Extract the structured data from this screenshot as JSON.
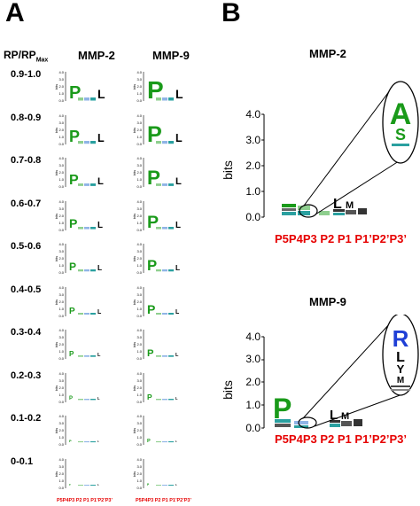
{
  "panels": {
    "a_label": "A",
    "b_label": "B"
  },
  "panel_a": {
    "row_header_main": "RP/RP",
    "row_header_sub": "Max",
    "columns": [
      "MMP-2",
      "MMP-9"
    ],
    "rows": [
      "0.9-1.0",
      "0.8-0.9",
      "0.7-0.8",
      "0.6-0.7",
      "0.5-0.6",
      "0.4-0.5",
      "0.3-0.4",
      "0.2-0.3",
      "0.1-0.2",
      "0-0.1"
    ],
    "y_axis_label": "bits",
    "y_ticks": [
      "4.0",
      "3.0",
      "2.0",
      "1.0",
      "0.0"
    ],
    "positions_label": "P5P4P3 P2 P1 P1’P2’P3’"
  },
  "panel_b": {
    "logos": [
      {
        "title": "MMP-2",
        "zoom_letters": [
          "A",
          "S"
        ]
      },
      {
        "title": "MMP-9",
        "zoom_letters": [
          "R",
          "L",
          "Y",
          "M"
        ]
      }
    ],
    "y_axis_label": "bits",
    "y_ticks": [
      "4.0",
      "3.0",
      "2.0",
      "1.0",
      "0.0"
    ],
    "positions": [
      "P5",
      "P4",
      "P3",
      "P2",
      "P1",
      "P1’",
      "P2’",
      "P3’"
    ]
  },
  "colors": {
    "position_label": "#e60000",
    "pro": "#1a9a1a",
    "hydrophobic": "#000000",
    "basic": "#1f3fd6",
    "neutral": "#2aa0a0"
  }
}
